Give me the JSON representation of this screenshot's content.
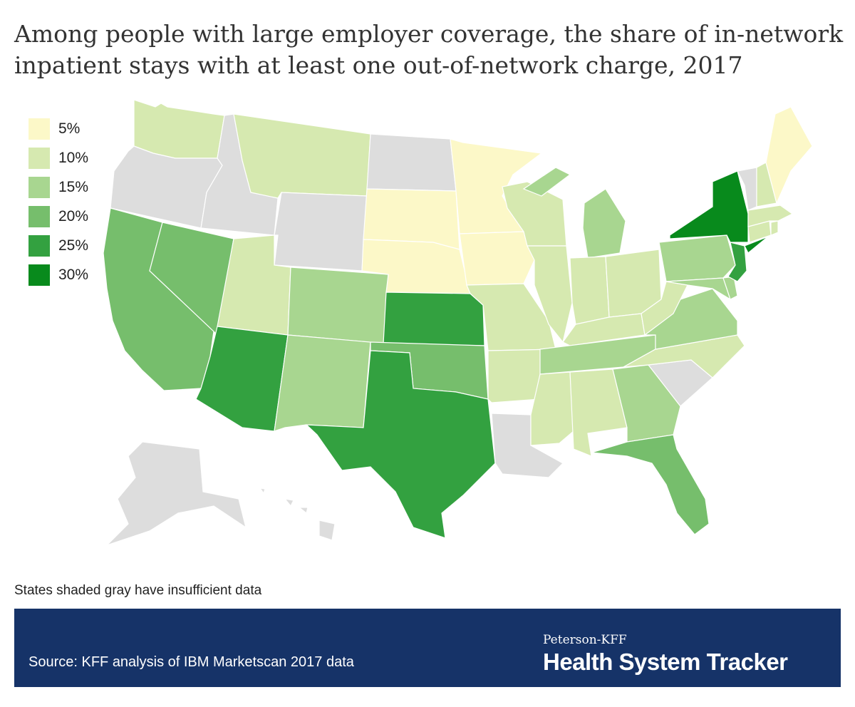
{
  "title_lines": [
    "Among people with large employer coverage, the share of in-network",
    "inpatient stays with at least one out-of-network charge, 2017"
  ],
  "legend": [
    {
      "label": "5%",
      "color": "#fcf8c8"
    },
    {
      "label": "10%",
      "color": "#d6e9b0"
    },
    {
      "label": "15%",
      "color": "#a8d690"
    },
    {
      "label": "20%",
      "color": "#76be6c"
    },
    {
      "label": "25%",
      "color": "#33a140"
    },
    {
      "label": "30%",
      "color": "#088a1c"
    }
  ],
  "no_data_color": "#dddddd",
  "state_values": {
    "WA": "10%",
    "OR": null,
    "CA": "20%",
    "NV": "20%",
    "ID": null,
    "MT": "10%",
    "WY": null,
    "UT": "10%",
    "AZ": "25%",
    "CO": "15%",
    "NM": "15%",
    "ND": null,
    "SD": "5%",
    "NE": "5%",
    "KS": "25%",
    "OK": "20%",
    "TX": "25%",
    "MN": "5%",
    "IA": "5%",
    "MO": "10%",
    "AR": "10%",
    "LA": null,
    "WI": "10%",
    "IL": "10%",
    "MI": "15%",
    "IN": "10%",
    "OH": "10%",
    "KY": "10%",
    "TN": "15%",
    "MS": "10%",
    "AL": "10%",
    "GA": "15%",
    "FL": "20%",
    "SC": null,
    "NC": "10%",
    "VA": "15%",
    "WV": "10%",
    "PA": "15%",
    "NY": "30%",
    "NJ": "25%",
    "MD": "15%",
    "DE": "15%",
    "CT": "10%",
    "RI": "10%",
    "MA": "10%",
    "VT": null,
    "NH": "10%",
    "ME": "5%",
    "AK": null,
    "HI": null
  },
  "note": "States shaded gray have insufficient data",
  "source": "Source: KFF analysis of IBM Marketscan 2017 data",
  "brand_top": "Peterson-KFF",
  "brand_main": "Health System Tracker"
}
